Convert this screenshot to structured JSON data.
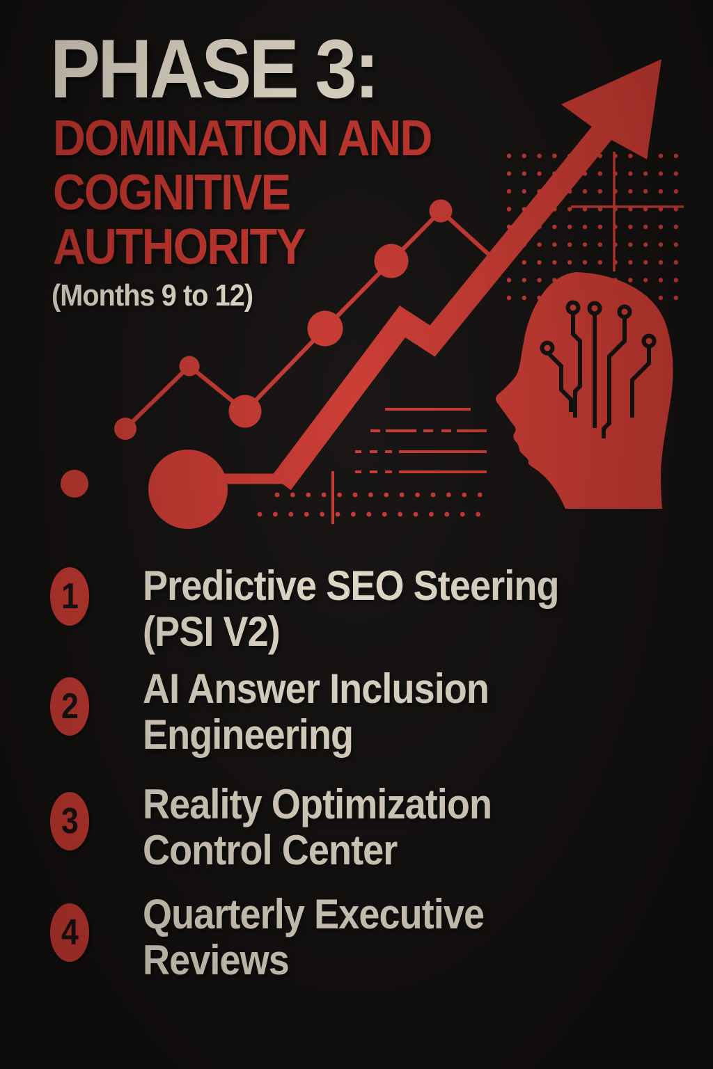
{
  "header": {
    "phase": "PHASE 3:",
    "title_line1": "DOMINATION AND",
    "title_line2": "COGNITIVE",
    "title_line3": "AUTHORITY",
    "timeframe": "(Months 9 to 12)"
  },
  "items": [
    {
      "number": "1",
      "line1": "Predictive SEO Steering",
      "line2": "(PSI V2)"
    },
    {
      "number": "2",
      "line1": "AI Answer Inclusion",
      "line2": "Engineering"
    },
    {
      "number": "3",
      "line1": "Reality Optimization",
      "line2": "Control Center"
    },
    {
      "number": "4",
      "line1": "Quarterly Executive",
      "line2": "Reviews"
    }
  ],
  "colors": {
    "background": "#141110",
    "red": "#cb3a32",
    "red_text": "#c8362e",
    "cream": "#ece3d1",
    "badge_number": "#1a1312"
  },
  "graphic": {
    "icons": [
      "trend-arrow-icon",
      "line-chart-icon",
      "dot-grid-icon",
      "crosshair-icon",
      "head-circuit-icon",
      "dashed-lines-decoration",
      "dot-rows-decoration"
    ]
  }
}
